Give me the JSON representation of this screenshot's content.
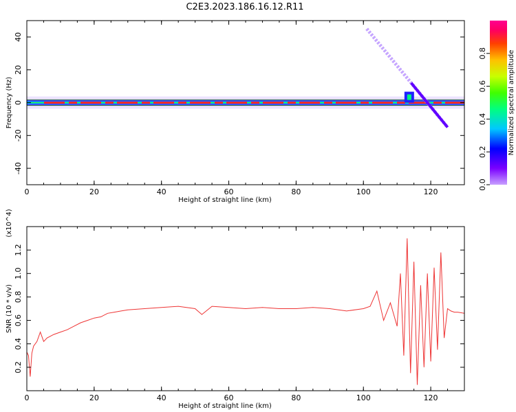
{
  "title": "C2E3.2023.186.16.12.R11",
  "chart_data": [
    {
      "type": "heatmap",
      "xlabel": "Height of straight line (km)",
      "ylabel": "Frequency (Hz)",
      "xlim": [
        0,
        130
      ],
      "ylim": [
        -50,
        50
      ],
      "xticks": [
        0,
        20,
        40,
        60,
        80,
        100,
        120
      ],
      "yticks": [
        -40,
        -20,
        0,
        20,
        40
      ],
      "colorbar": {
        "label": "Normalized spectral amplitude",
        "range": [
          0,
          1
        ],
        "ticks": [
          "0.0",
          "0.2",
          "0.4",
          "0.6",
          "0.8"
        ],
        "tick_values": [
          0,
          0.2,
          0.4,
          0.6,
          0.8
        ],
        "colors": [
          "#c8a0ff",
          "#7a00ff",
          "#0000ff",
          "#00c8ff",
          "#00ff80",
          "#40ff00",
          "#c8ff00",
          "#ffc000",
          "#ff4000",
          "#ff0060",
          "#ff0090"
        ]
      },
      "main_band": {
        "frequency_hz": 0,
        "from_km": 0,
        "to_km": 130
      },
      "diagonal_trace": {
        "from": [
          101,
          45
        ],
        "to": [
          125,
          -15
        ]
      },
      "grid": false
    },
    {
      "type": "line",
      "xlabel": "Height of straight line (km)",
      "ylabel": "SNR (10 * v/v)",
      "y_multiplier": "(x10^4)",
      "xlim": [
        0,
        130
      ],
      "ylim": [
        0,
        1.4
      ],
      "xticks": [
        0,
        20,
        40,
        60,
        80,
        100,
        120
      ],
      "yticks": [
        "0.2",
        "0.4",
        "0.6",
        "0.8",
        "1.0",
        "1.2"
      ],
      "ytick_values": [
        0.2,
        0.4,
        0.6,
        0.8,
        1.0,
        1.2
      ],
      "color": "#ee3333",
      "series": [
        {
          "x": [
            0,
            0.5,
            1,
            1.5,
            2,
            3,
            4,
            5,
            6,
            8,
            10,
            12,
            14,
            16,
            18,
            20,
            22,
            24,
            26,
            28,
            30,
            35,
            40,
            45,
            50,
            52,
            55,
            60,
            65,
            70,
            75,
            80,
            85,
            90,
            95,
            100,
            102,
            104,
            106,
            108,
            110,
            111,
            112,
            113,
            114,
            115,
            116,
            117,
            118,
            119,
            120,
            121,
            122,
            123,
            124,
            125,
            126,
            127,
            128,
            130
          ],
          "y": [
            0.33,
            0.3,
            0.12,
            0.32,
            0.38,
            0.42,
            0.5,
            0.42,
            0.45,
            0.48,
            0.5,
            0.52,
            0.55,
            0.58,
            0.6,
            0.62,
            0.63,
            0.66,
            0.67,
            0.68,
            0.69,
            0.7,
            0.71,
            0.72,
            0.7,
            0.65,
            0.72,
            0.71,
            0.7,
            0.71,
            0.7,
            0.7,
            0.71,
            0.7,
            0.68,
            0.7,
            0.72,
            0.85,
            0.6,
            0.75,
            0.55,
            1.0,
            0.3,
            1.3,
            0.15,
            1.1,
            0.05,
            0.9,
            0.2,
            1.0,
            0.25,
            1.05,
            0.35,
            1.18,
            0.45,
            0.7,
            0.68,
            0.67,
            0.67,
            0.66
          ]
        }
      ],
      "grid": false
    }
  ]
}
